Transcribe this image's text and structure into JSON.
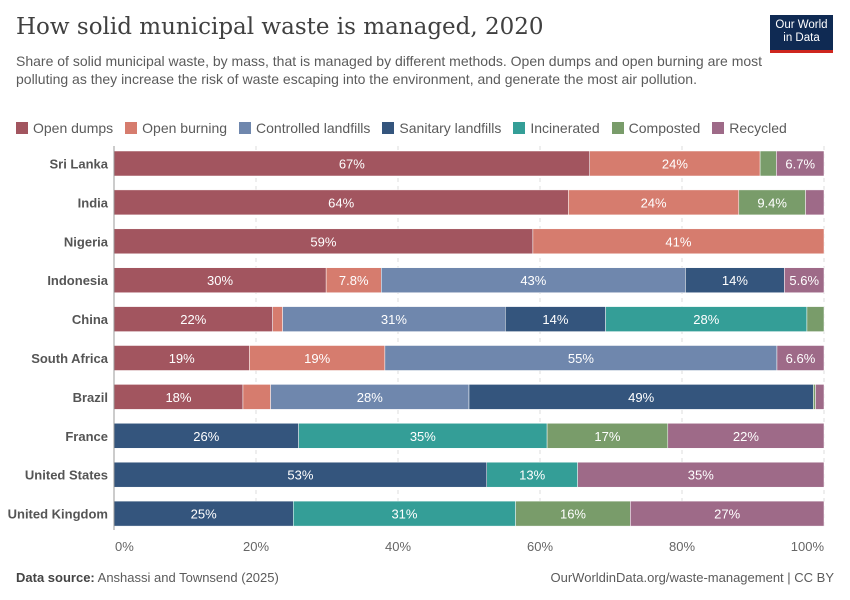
{
  "header": {
    "title": "How solid municipal waste is managed, 2020",
    "subtitle": "Share of solid municipal waste, by mass, that is managed by different methods. Open dumps and open burning are most polluting as they increase the risk of waste escaping into the environment, and generate the most air pollution.",
    "logo": "Our World in Data"
  },
  "footer": {
    "source_label": "Data source:",
    "source": "Anshassi and Townsend (2025)",
    "url": "OurWorldinData.org/waste-management | CC BY"
  },
  "chart_data": {
    "type": "bar",
    "orientation": "horizontal",
    "stacked": true,
    "xlim": [
      0,
      100
    ],
    "ticks": [
      "0%",
      "20%",
      "40%",
      "60%",
      "80%",
      "100%"
    ],
    "grid": true,
    "legend": "top",
    "legend_entries": [
      "Open dumps",
      "Open burning",
      "Controlled landfills",
      "Sanitary landfills",
      "Incinerated",
      "Composted",
      "Recycled"
    ],
    "colors": [
      "#a2555f",
      "#d67c6e",
      "#6f87ad",
      "#34557d",
      "#349e97",
      "#799c6a",
      "#9e6a88"
    ],
    "categories": [
      "Sri Lanka",
      "India",
      "Nigeria",
      "Indonesia",
      "China",
      "South Africa",
      "Brazil",
      "France",
      "United States",
      "United Kingdom"
    ],
    "series": [
      {
        "name": "Open dumps",
        "values": [
          67,
          64,
          59,
          30,
          22.3,
          19,
          18.2,
          0,
          0,
          0
        ]
      },
      {
        "name": "Open burning",
        "values": [
          24,
          24,
          41,
          7.8,
          1.4,
          19,
          3.9,
          0,
          0,
          0
        ]
      },
      {
        "name": "Controlled landfills",
        "values": [
          0,
          0,
          0,
          43,
          31.3,
          55,
          28,
          0,
          0,
          0
        ]
      },
      {
        "name": "Sanitary landfills",
        "values": [
          0,
          0,
          0,
          14,
          14.1,
          0,
          48.6,
          26,
          52.5,
          25
        ]
      },
      {
        "name": "Incinerated",
        "values": [
          0,
          0,
          0,
          0,
          28.3,
          0,
          0,
          35,
          12.8,
          31
        ]
      },
      {
        "name": "Composted",
        "values": [
          2.3,
          9.4,
          0,
          0,
          2.4,
          0,
          0.3,
          17,
          0,
          16
        ]
      },
      {
        "name": "Recycled",
        "values": [
          6.7,
          2.6,
          0,
          5.6,
          0,
          6.6,
          1.2,
          22,
          34.7,
          27
        ]
      }
    ]
  }
}
